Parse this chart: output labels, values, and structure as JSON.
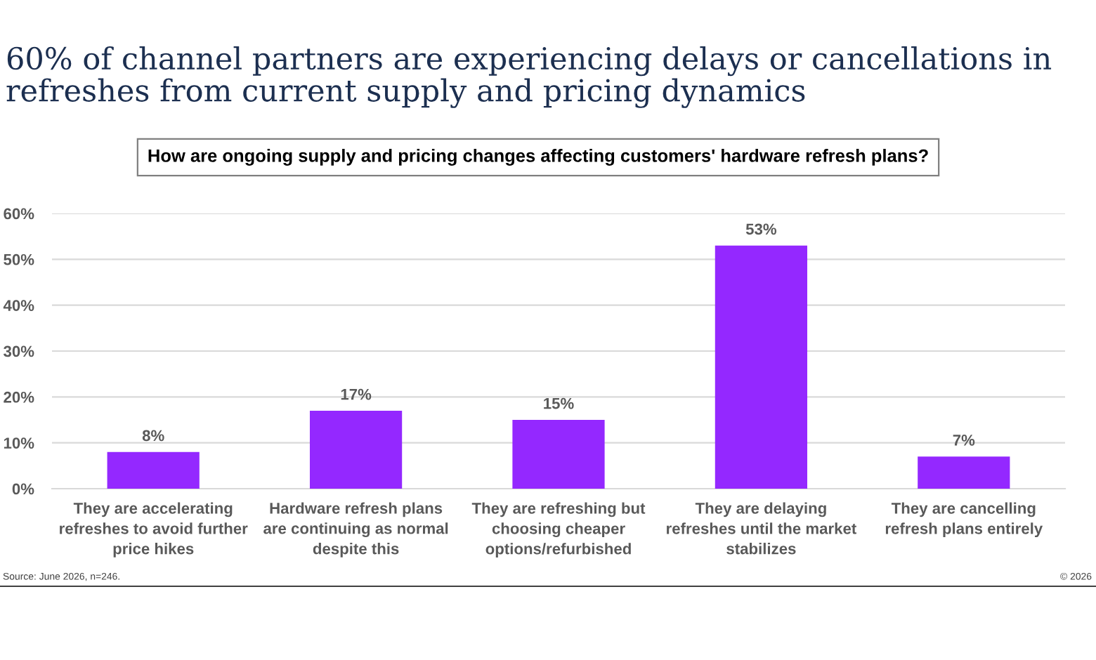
{
  "chart_data": {
    "type": "bar",
    "title": "60% of channel partners are experiencing delays or cancellations in\nrefreshes from current supply and pricing dynamics",
    "subtitle": "How are ongoing supply and pricing changes affecting customers' hardware refresh plans?",
    "categories": [
      "They are accelerating\nrefreshes to avoid further\nprice hikes",
      "Hardware refresh plans\nare continuing as normal\ndespite this",
      "They are refreshing but\nchoosing cheaper\noptions/refurbished",
      "They are delaying\nrefreshes until the market\nstabilizes",
      "They are cancelling\nrefresh plans entirely"
    ],
    "values": [
      8,
      17,
      15,
      53,
      7
    ],
    "value_labels": [
      "8%",
      "17%",
      "15%",
      "53%",
      "7%"
    ],
    "color": "#9428ff",
    "ylim": [
      0,
      60
    ],
    "yticks": [
      {
        "value": 0,
        "label": "0%"
      },
      {
        "value": 10,
        "label": "10%"
      },
      {
        "value": 20,
        "label": "20%"
      },
      {
        "value": 30,
        "label": "30%"
      },
      {
        "value": 40,
        "label": "40%"
      },
      {
        "value": 50,
        "label": "50%"
      },
      {
        "value": 60,
        "label": "60%"
      }
    ],
    "grid": "y",
    "annotations": [
      "Source: June 2026, n=246.",
      "© 2026"
    ]
  }
}
